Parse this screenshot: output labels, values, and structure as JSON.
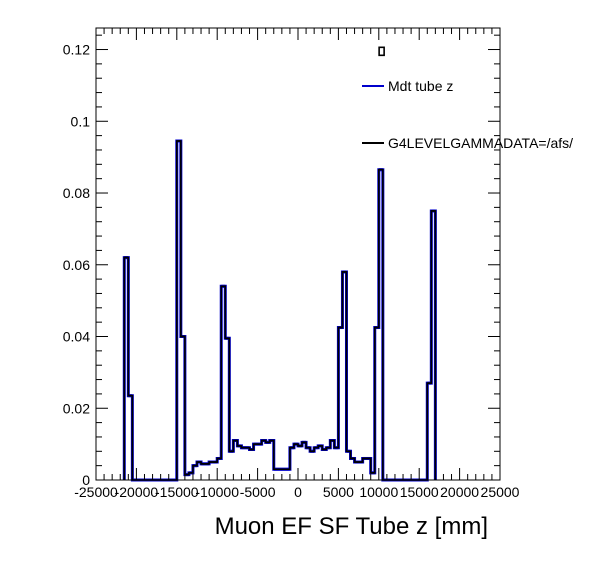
{
  "chart_data": {
    "type": "histogram",
    "title": "",
    "xlabel": "Muon EF SF Tube z [mm]",
    "ylabel": "",
    "xlim": [
      -25000,
      25000
    ],
    "ylim": [
      0,
      0.126
    ],
    "grid": false,
    "legend_position": "top-right",
    "x_ticks": [
      -25000,
      -20000,
      -15000,
      -10000,
      -5000,
      0,
      5000,
      10000,
      15000,
      20000,
      25000
    ],
    "x_tick_labels": [
      "-25000",
      "-20000",
      "-15000",
      "-10000",
      "-5000",
      "0",
      "5000",
      "10000",
      "15000",
      "20000",
      "25000"
    ],
    "y_ticks": [
      0,
      0.02,
      0.04,
      0.06,
      0.08,
      0.1,
      0.12
    ],
    "y_tick_labels": [
      "0",
      "0.02",
      "0.04",
      "0.06",
      "0.08",
      "0.1",
      "0.12"
    ],
    "series": [
      {
        "name": "Mdt tube z",
        "color": "#0000cc",
        "bins": [
          [
            -21500,
            -21000,
            0.062
          ],
          [
            -21000,
            -20500,
            0.0235
          ],
          [
            -15000,
            -14500,
            0.0945
          ],
          [
            -14500,
            -14000,
            0.04
          ],
          [
            -14000,
            -13500,
            0.0015
          ],
          [
            -13500,
            -13000,
            0.002
          ],
          [
            -13000,
            -12500,
            0.004
          ],
          [
            -12500,
            -12000,
            0.005
          ],
          [
            -12000,
            -11000,
            0.0045
          ],
          [
            -11000,
            -10000,
            0.005
          ],
          [
            -10000,
            -9500,
            0.006
          ],
          [
            -9500,
            -9000,
            0.054
          ],
          [
            -9000,
            -8500,
            0.0395
          ],
          [
            -8500,
            -8000,
            0.008
          ],
          [
            -8000,
            -7500,
            0.011
          ],
          [
            -7500,
            -7000,
            0.0095
          ],
          [
            -7000,
            -6000,
            0.009
          ],
          [
            -6000,
            -5500,
            0.0085
          ],
          [
            -5500,
            -5000,
            0.01
          ],
          [
            -5000,
            -4500,
            0.01
          ],
          [
            -4500,
            -4000,
            0.011
          ],
          [
            -4000,
            -3500,
            0.0105
          ],
          [
            -3500,
            -3000,
            0.011
          ],
          [
            -3000,
            -1000,
            0.003
          ],
          [
            -1000,
            -500,
            0.009
          ],
          [
            -500,
            0,
            0.01
          ],
          [
            0,
            500,
            0.0095
          ],
          [
            500,
            1000,
            0.0105
          ],
          [
            1000,
            1500,
            0.009
          ],
          [
            1500,
            2000,
            0.008
          ],
          [
            2000,
            2500,
            0.009
          ],
          [
            2500,
            3000,
            0.0095
          ],
          [
            3000,
            3500,
            0.0085
          ],
          [
            3500,
            4000,
            0.009
          ],
          [
            4000,
            4500,
            0.011
          ],
          [
            4500,
            5000,
            0.009
          ],
          [
            5000,
            5500,
            0.0425
          ],
          [
            5500,
            6000,
            0.058
          ],
          [
            6000,
            6500,
            0.008
          ],
          [
            6500,
            7000,
            0.006
          ],
          [
            7000,
            8000,
            0.005
          ],
          [
            8000,
            9000,
            0.006
          ],
          [
            9000,
            9500,
            0.002
          ],
          [
            9500,
            10000,
            0.0425
          ],
          [
            10000,
            10500,
            0.0865
          ],
          [
            16000,
            16500,
            0.027
          ],
          [
            16500,
            17000,
            0.075
          ]
        ]
      },
      {
        "name": "G4LEVELGAMMADATA=/afs/",
        "color": "#000000",
        "bins": [
          [
            -21500,
            -21000,
            0.062
          ],
          [
            -21000,
            -20500,
            0.0235
          ],
          [
            -15000,
            -14500,
            0.0945
          ],
          [
            -14500,
            -14000,
            0.04
          ],
          [
            -14000,
            -13500,
            0.0015
          ],
          [
            -13500,
            -13000,
            0.002
          ],
          [
            -13000,
            -12500,
            0.004
          ],
          [
            -12500,
            -12000,
            0.005
          ],
          [
            -12000,
            -11000,
            0.0045
          ],
          [
            -11000,
            -10000,
            0.005
          ],
          [
            -10000,
            -9500,
            0.006
          ],
          [
            -9500,
            -9000,
            0.054
          ],
          [
            -9000,
            -8500,
            0.0395
          ],
          [
            -8500,
            -8000,
            0.008
          ],
          [
            -8000,
            -7500,
            0.011
          ],
          [
            -7500,
            -7000,
            0.0095
          ],
          [
            -7000,
            -6000,
            0.009
          ],
          [
            -6000,
            -5500,
            0.0085
          ],
          [
            -5500,
            -5000,
            0.01
          ],
          [
            -5000,
            -4500,
            0.01
          ],
          [
            -4500,
            -4000,
            0.011
          ],
          [
            -4000,
            -3500,
            0.0105
          ],
          [
            -3500,
            -3000,
            0.011
          ],
          [
            -3000,
            -1000,
            0.003
          ],
          [
            -1000,
            -500,
            0.009
          ],
          [
            -500,
            0,
            0.01
          ],
          [
            0,
            500,
            0.0095
          ],
          [
            500,
            1000,
            0.0105
          ],
          [
            1000,
            1500,
            0.009
          ],
          [
            1500,
            2000,
            0.008
          ],
          [
            2000,
            2500,
            0.009
          ],
          [
            2500,
            3000,
            0.0095
          ],
          [
            3000,
            3500,
            0.0085
          ],
          [
            3500,
            4000,
            0.009
          ],
          [
            4000,
            4500,
            0.011
          ],
          [
            4500,
            5000,
            0.009
          ],
          [
            5000,
            5500,
            0.0425
          ],
          [
            5500,
            6000,
            0.058
          ],
          [
            6000,
            6500,
            0.008
          ],
          [
            6500,
            7000,
            0.006
          ],
          [
            7000,
            8000,
            0.005
          ],
          [
            8000,
            9000,
            0.006
          ],
          [
            9000,
            9500,
            0.002
          ],
          [
            9500,
            10000,
            0.0425
          ],
          [
            10000,
            10500,
            0.0865
          ],
          [
            16000,
            16500,
            0.027
          ],
          [
            16500,
            17000,
            0.075
          ]
        ]
      }
    ],
    "markers": [
      {
        "x": 10350,
        "y": 0.1195
      }
    ]
  }
}
